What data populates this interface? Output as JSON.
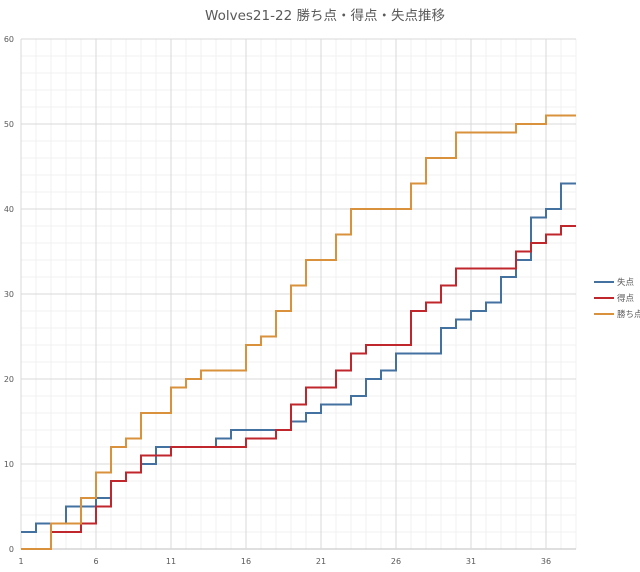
{
  "chart_data": {
    "type": "line",
    "step": true,
    "title": "Wolves21-22 勝ち点・得点・失点推移",
    "xlim": [
      1,
      38
    ],
    "ylim": [
      0,
      60
    ],
    "x_ticks": [
      1,
      6,
      11,
      16,
      21,
      26,
      31,
      36
    ],
    "y_ticks": [
      0,
      10,
      20,
      30,
      40,
      50,
      60
    ],
    "grid": true,
    "legend_position": "right",
    "x": [
      1,
      2,
      3,
      4,
      5,
      6,
      7,
      8,
      9,
      10,
      11,
      12,
      13,
      14,
      15,
      16,
      17,
      18,
      19,
      20,
      21,
      22,
      23,
      24,
      25,
      26,
      27,
      28,
      29,
      30,
      31,
      32,
      33,
      34,
      35,
      36,
      37,
      38
    ],
    "series": [
      {
        "name": "失点",
        "color": "#4472a0",
        "values": [
          2,
          3,
          3,
          5,
          5,
          6,
          8,
          9,
          10,
          12,
          12,
          12,
          12,
          13,
          14,
          14,
          14,
          14,
          15,
          16,
          17,
          17,
          18,
          20,
          21,
          23,
          23,
          23,
          26,
          27,
          28,
          29,
          32,
          34,
          39,
          40,
          43,
          43
        ]
      },
      {
        "name": "得点",
        "color": "#c0272d",
        "values": [
          0,
          0,
          2,
          2,
          3,
          5,
          8,
          9,
          11,
          11,
          12,
          12,
          12,
          12,
          12,
          13,
          13,
          14,
          17,
          19,
          19,
          21,
          23,
          24,
          24,
          24,
          28,
          29,
          31,
          33,
          33,
          33,
          33,
          35,
          36,
          37,
          38,
          38
        ]
      },
      {
        "name": "勝ち点",
        "color": "#d9913c",
        "values": [
          0,
          0,
          3,
          3,
          6,
          9,
          12,
          13,
          16,
          16,
          19,
          20,
          21,
          21,
          21,
          24,
          25,
          28,
          31,
          34,
          34,
          37,
          40,
          40,
          40,
          40,
          43,
          46,
          46,
          49,
          49,
          49,
          49,
          50,
          50,
          51,
          51,
          51
        ]
      }
    ]
  }
}
